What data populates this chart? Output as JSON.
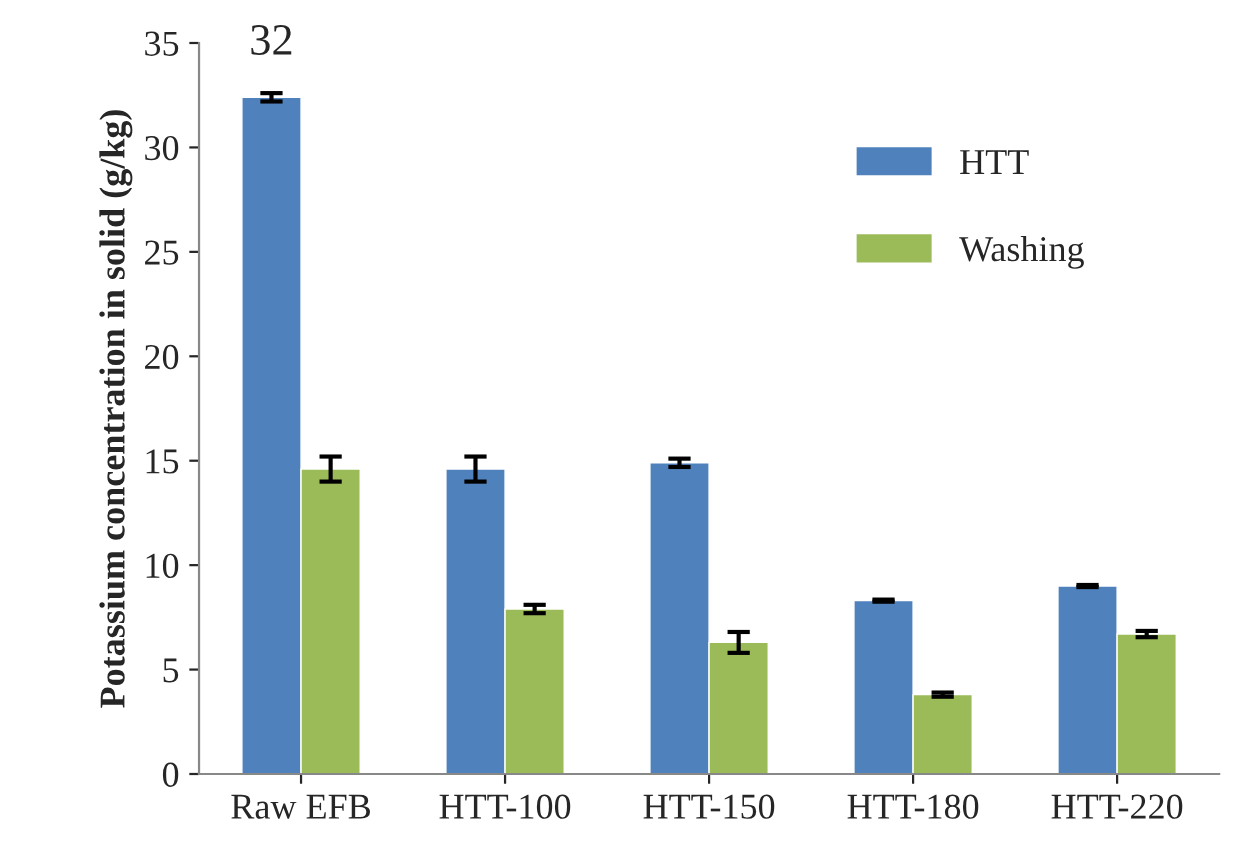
{
  "chart_data": {
    "type": "bar",
    "ylabel": "Potassium concentration in solid (g/kg)",
    "categories": [
      "Raw EFB",
      "HTT-100",
      "HTT-150",
      "HTT-180",
      "HTT-220"
    ],
    "series": [
      {
        "name": "HTT",
        "color": "#4f81bd",
        "values": [
          32.4,
          14.6,
          14.9,
          8.3,
          9.0
        ],
        "errors": [
          0.2,
          0.6,
          0.2,
          0.05,
          0.05
        ],
        "value_labels": [
          "32",
          null,
          null,
          null,
          null
        ]
      },
      {
        "name": "Washing",
        "color": "#9bbb59",
        "values": [
          14.6,
          7.9,
          6.3,
          3.8,
          6.7
        ],
        "errors": [
          0.6,
          0.2,
          0.5,
          0.1,
          0.15
        ]
      }
    ],
    "ylim": [
      0,
      35
    ],
    "yticks": [
      0,
      5,
      10,
      15,
      20,
      25,
      30,
      35
    ],
    "grid": false,
    "legend": "top right"
  }
}
